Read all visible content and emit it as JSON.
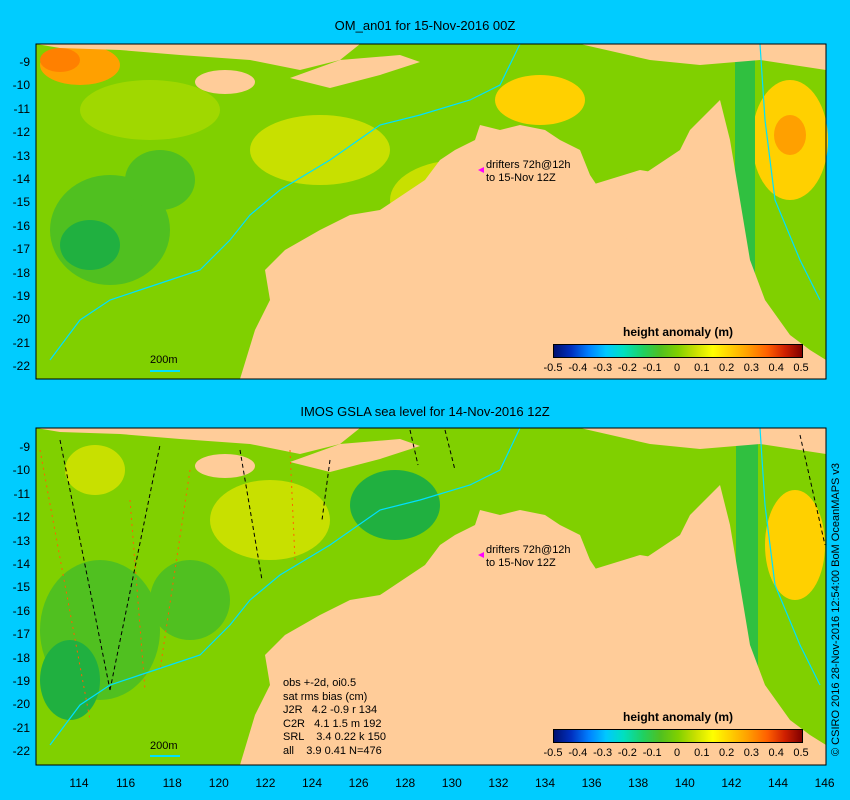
{
  "panels": [
    {
      "title": "OM_an01 for 15-Nov-2016 00Z",
      "y_ticks": [
        "-9",
        "-10",
        "-11",
        "-12",
        "-13",
        "-14",
        "-15",
        "-16",
        "-17",
        "-18",
        "-19",
        "-20",
        "-21",
        "-22"
      ],
      "drifters_note": [
        "drifters 72h@12h",
        "to 15-Nov 12Z"
      ],
      "scale_label": "200m",
      "legend_title": "height anomaly (m)"
    },
    {
      "title": "IMOS GSLA sea level  for 14-Nov-2016 12Z",
      "y_ticks": [
        "-9",
        "-10",
        "-11",
        "-12",
        "-13",
        "-14",
        "-15",
        "-16",
        "-17",
        "-18",
        "-19",
        "-20",
        "-21",
        "-22"
      ],
      "drifters_note": [
        "drifters 72h@12h",
        "to 15-Nov 12Z"
      ],
      "scale_label": "200m",
      "legend_title": "height anomaly (m)",
      "stats": [
        "obs +-2d, oi0.5",
        "sat rms bias (cm)",
        "J2R   4.2 -0.9 r 134",
        "C2R   4.1 1.5 m 192",
        "SRL    3.4 0.22 k 150",
        "all    3.9 0.41 N=476"
      ]
    }
  ],
  "colorbar_ticks": [
    "-0.5",
    "-0.4",
    "-0.3",
    "-0.2",
    "-0.1",
    "0",
    "0.1",
    "0.2",
    "0.3",
    "0.4",
    "0.5"
  ],
  "x_ticks": [
    "114",
    "116",
    "118",
    "120",
    "122",
    "124",
    "126",
    "128",
    "130",
    "132",
    "134",
    "136",
    "138",
    "140",
    "142",
    "144",
    "146"
  ],
  "credit": "© CSIRO 2016  28-Nov-2016 12:54:00 BoM OceanMAPS v3",
  "colors": {
    "background": "#00ccff",
    "land": "#ffcc99",
    "ocean_base": "#80d000",
    "isobath": "#00e0ff"
  }
}
